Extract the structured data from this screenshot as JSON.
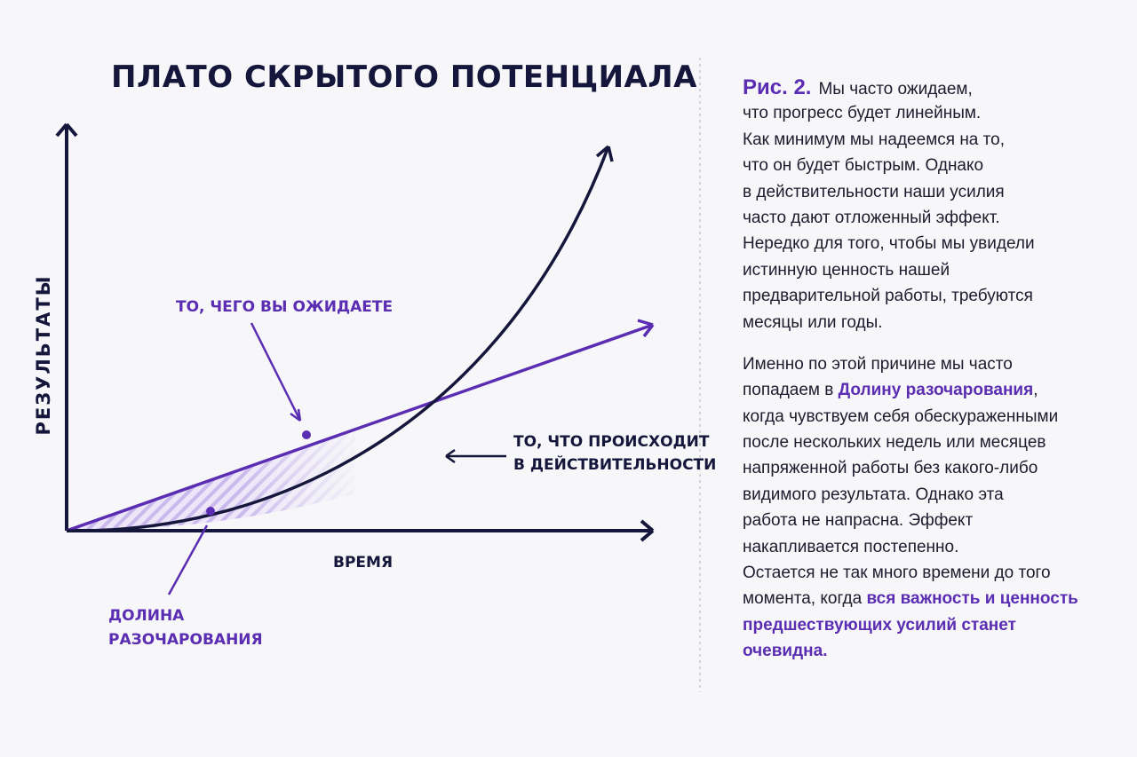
{
  "title": "ПЛАТО СКРЫТОГО ПОТЕНЦИАЛА",
  "axes": {
    "y": "РЕЗУЛЬТАТЫ",
    "x": "ВРЕМЯ"
  },
  "labels": {
    "expected": "ТО, ЧЕГО ВЫ ОЖИДАЕТЕ",
    "actual": [
      "ТО, ЧТО ПРОИСХОДИТ",
      "В ДЕЙСТВИТЕЛЬНОСТИ"
    ],
    "valley": [
      "ДОЛИНА",
      "РАЗОЧАРОВАНИЯ"
    ]
  },
  "caption": {
    "paragraphs": [
      [
        [
          {
            "text": "Рис. 2.",
            "accent": true
          },
          {
            "text": "Мы часто ожидаем,"
          }
        ],
        [
          {
            "text": "что прогресс будет линейным."
          }
        ],
        [
          {
            "text": "Как минимум мы надеемся на то,"
          }
        ],
        [
          {
            "text": "что он будет быстрым. Однако"
          }
        ],
        [
          {
            "text": "в действительности наши усилия"
          }
        ],
        [
          {
            "text": "часто дают отложенный эффект."
          }
        ],
        [
          {
            "text": "Нередко для того, чтобы мы увидели"
          }
        ],
        [
          {
            "text": "истинную ценность нашей"
          }
        ],
        [
          {
            "text": "предварительной работы, требуются"
          }
        ],
        [
          {
            "text": "месяцы или годы."
          }
        ]
      ],
      [
        [
          {
            "text": "Именно по этой причине мы часто"
          }
        ],
        [
          {
            "text": "попадаем в "
          },
          {
            "text": "Долину разочарования",
            "accent": true
          },
          {
            "text": ","
          }
        ],
        [
          {
            "text": "когда чувствуем себя обескураженными"
          }
        ],
        [
          {
            "text": "после нескольких недель или месяцев"
          }
        ],
        [
          {
            "text": "напряженной работы без какого-либо"
          }
        ],
        [
          {
            "text": "видимого результата. Однако эта"
          }
        ],
        [
          {
            "text": "работа не напрасна. Эффект"
          }
        ],
        [
          {
            "text": "накапливается постепенно."
          }
        ],
        [
          {
            "text": "Остается не так много времени до того"
          }
        ],
        [
          {
            "text": "момента, когда "
          },
          {
            "text": "вся важность и ценность",
            "accent": true
          }
        ],
        [
          {
            "text": "предшествующих усилий станет",
            "accent": true
          }
        ],
        [
          {
            "text": "очевидна.",
            "accent": true
          }
        ]
      ]
    ]
  }
}
